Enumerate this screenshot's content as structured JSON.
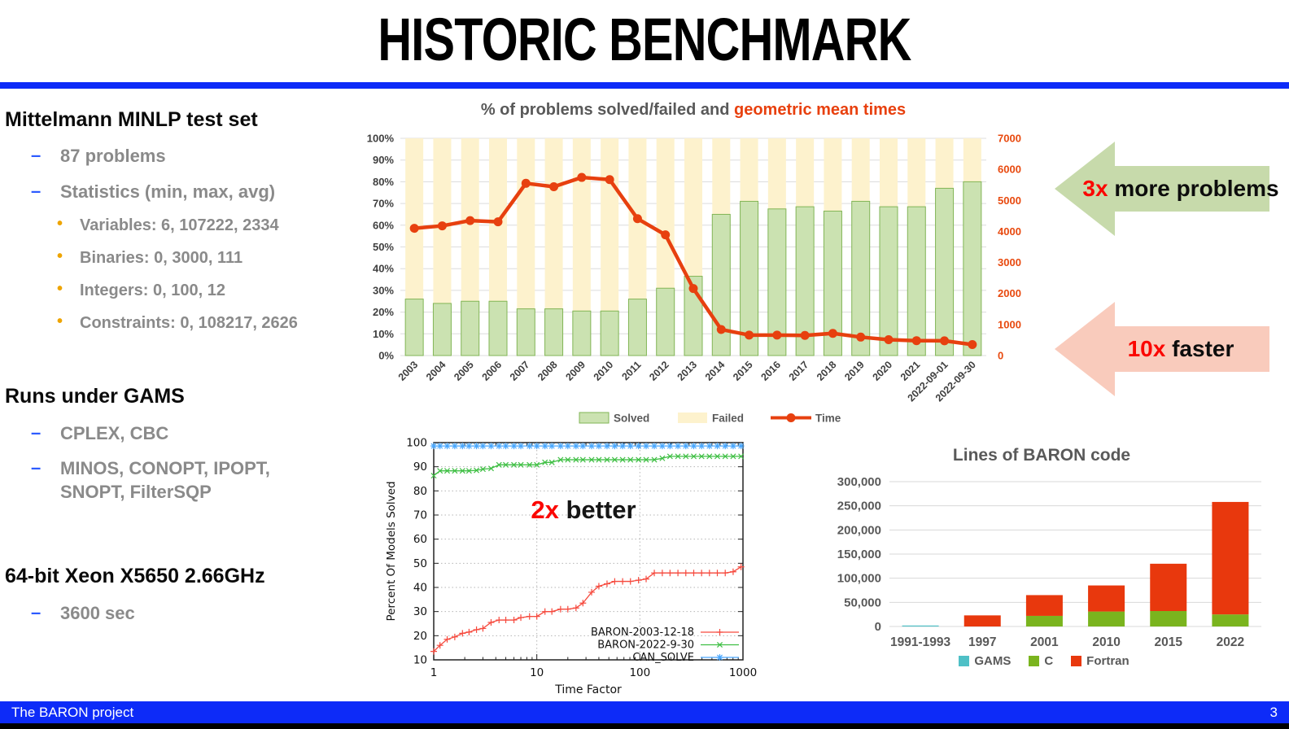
{
  "slide": {
    "title": "HISTORIC BENCHMARK"
  },
  "footer": {
    "left": "The BARON project",
    "page": "3"
  },
  "annotations": {
    "more_problems": {
      "accent": "3x",
      "rest": " more problems"
    },
    "faster": {
      "accent": "10x",
      "rest": " faster"
    },
    "better": {
      "accent": "2x",
      "rest": " better"
    }
  },
  "left_panel": {
    "sections": [
      {
        "title": "Mittelmann MINLP test set",
        "items": [
          {
            "level": 1,
            "text": "87 problems"
          },
          {
            "level": 1,
            "text": "Statistics (min, max, avg)"
          },
          {
            "level": 2,
            "text": "Variables: 6, 107222, 2334"
          },
          {
            "level": 2,
            "text": "Binaries: 0, 3000, 111"
          },
          {
            "level": 2,
            "text": "Integers: 0, 100, 12"
          },
          {
            "level": 2,
            "text": "Constraints: 0, 108217, 2626"
          }
        ]
      },
      {
        "title": "Runs under GAMS",
        "items": [
          {
            "level": 1,
            "text": "CPLEX, CBC"
          },
          {
            "level": 1,
            "text": "MINOS, CONOPT, IPOPT, SNOPT, FilterSQP"
          }
        ]
      },
      {
        "title": "64-bit Xeon X5650 2.66GHz",
        "items": [
          {
            "level": 1,
            "text": "3600 sec"
          }
        ]
      }
    ]
  },
  "chart_data": [
    {
      "name": "solved-failed-times",
      "type": "bar+line",
      "title_gray": "% of problems solved/failed and ",
      "title_red": "geometric mean times",
      "categories": [
        "2003",
        "2004",
        "2005",
        "2006",
        "2007",
        "2008",
        "2009",
        "2010",
        "2011",
        "2012",
        "2013",
        "2014",
        "2015",
        "2016",
        "2017",
        "2018",
        "2019",
        "2020",
        "2021",
        "2022-09-01",
        "2022-09-30"
      ],
      "series": [
        {
          "name": "Solved",
          "type": "bar",
          "unit": "percent",
          "values": [
            26,
            24,
            25,
            25,
            21.5,
            21.5,
            20.5,
            20.5,
            26,
            31,
            36.5,
            65,
            71,
            67.5,
            68.5,
            66.5,
            71,
            68.5,
            68.5,
            77,
            80
          ]
        },
        {
          "name": "Failed",
          "type": "bar",
          "unit": "percent",
          "values": [
            74,
            76,
            75,
            75,
            78.5,
            78.5,
            79.5,
            79.5,
            74,
            69,
            63.5,
            35,
            29,
            32.5,
            31.5,
            33.5,
            29,
            31.5,
            31.5,
            23,
            20
          ]
        },
        {
          "name": "Time",
          "type": "line",
          "axis": "right",
          "values": [
            4100,
            4180,
            4350,
            4310,
            5550,
            5440,
            5740,
            5670,
            4410,
            3890,
            2160,
            840,
            660,
            660,
            650,
            715,
            595,
            510,
            480,
            475,
            355
          ]
        }
      ],
      "left_axis": {
        "min": 0,
        "max": 100,
        "step": 10,
        "format": "percent"
      },
      "right_axis": {
        "min": 0,
        "max": 7000,
        "step": 1000
      },
      "legend_position": "bottom",
      "grid": true,
      "colors": {
        "solved_fill": "#cbe2b1",
        "solved_stroke": "#82b556",
        "failed_fill": "#fdf2cd",
        "time_line": "#e7400f",
        "right_axis_label": "#e8490e",
        "grid": "#dcdcdc",
        "axis_label": "#3f3f3f",
        "legend_label": "#595959"
      }
    },
    {
      "name": "performance-profile",
      "type": "line",
      "xlabel": "Time Factor",
      "ylabel": "Percent Of Models Solved",
      "x_scale": "log",
      "xlim": [
        1,
        1000
      ],
      "ylim": [
        10,
        100
      ],
      "ystep": 10,
      "grid": "dotted",
      "legend_position": "inside-bottom-right",
      "x": [
        1,
        1.15,
        1.35,
        1.6,
        1.9,
        2.2,
        2.6,
        3,
        3.6,
        4.3,
        5,
        6,
        7,
        8.5,
        10,
        12,
        14,
        17,
        20,
        24,
        28,
        34,
        40,
        48,
        57,
        68,
        81,
        97,
        115,
        138,
        165,
        196,
        234,
        279,
        333,
        397,
        473,
        564,
        673,
        803,
        958
      ],
      "series": [
        {
          "name": "BARON-2003-12-18",
          "color": "#f64a3e",
          "marker": "plus",
          "y": [
            13.5,
            16,
            18.5,
            19.5,
            21,
            21.5,
            22.5,
            23,
            25.5,
            26.5,
            26.5,
            26.5,
            27.5,
            28,
            28,
            30,
            30,
            31,
            31,
            31.5,
            33.5,
            38,
            40.5,
            41.5,
            42.5,
            42.5,
            42.5,
            43,
            43.5,
            46,
            46,
            46,
            46,
            46,
            46,
            46,
            46,
            46,
            46,
            46.5,
            48.5
          ]
        },
        {
          "name": "BARON-2022-9-30",
          "color": "#3fbf44",
          "marker": "cross",
          "y": [
            86.3,
            88.3,
            88.3,
            88.3,
            88.3,
            88.3,
            88.5,
            89,
            89.3,
            90.8,
            90.8,
            90.8,
            90.8,
            90.8,
            90.8,
            91.8,
            91.8,
            92.9,
            92.9,
            92.9,
            92.9,
            92.9,
            92.9,
            92.9,
            92.9,
            92.9,
            92.9,
            92.9,
            92.9,
            92.9,
            93.5,
            94.3,
            94.3,
            94.3,
            94.3,
            94.3,
            94.3,
            94.3,
            94.3,
            94.3,
            94.3
          ]
        },
        {
          "name": "CAN_SOLVE",
          "color": "#4aa8ff",
          "marker": "asterisk",
          "y": [
            98.6,
            98.6,
            98.6,
            98.6,
            98.6,
            98.6,
            98.6,
            98.6,
            98.6,
            98.6,
            98.6,
            98.6,
            98.6,
            98.6,
            98.6,
            98.6,
            98.6,
            98.6,
            98.6,
            98.6,
            98.6,
            98.6,
            98.6,
            98.6,
            98.6,
            98.6,
            98.6,
            98.6,
            98.6,
            98.6,
            98.6,
            98.6,
            98.6,
            98.6,
            98.6,
            98.6,
            98.6,
            98.6,
            98.6,
            98.6,
            98.6
          ]
        }
      ]
    },
    {
      "name": "lines-of-code",
      "type": "stacked-bar",
      "title": "Lines of BARON code",
      "categories": [
        "1991-1993",
        "1997",
        "2001",
        "2010",
        "2015",
        "2022"
      ],
      "series": [
        {
          "name": "GAMS",
          "color": "#4ec0c6",
          "values": [
            2000,
            0,
            0,
            0,
            0,
            0
          ]
        },
        {
          "name": "C",
          "color": "#7ab41e",
          "values": [
            0,
            0,
            22000,
            31000,
            32000,
            25000
          ]
        },
        {
          "name": "Fortran",
          "color": "#e8380d",
          "values": [
            0,
            23000,
            43000,
            54000,
            98000,
            233000
          ]
        }
      ],
      "ylim": [
        0,
        300000
      ],
      "ystep": 50000,
      "legend_position": "bottom",
      "colors": {
        "grid": "#d8d8d8",
        "axis_label": "#595959"
      }
    }
  ]
}
